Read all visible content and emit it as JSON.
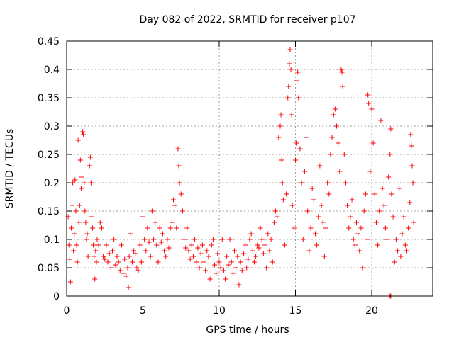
{
  "chart_data": {
    "type": "scatter",
    "title": "Day 082 of 2022, SRMTID for receiver p107",
    "xlabel": "GPS time / hours",
    "ylabel": "SRMTID / TECUs",
    "xlim": [
      0,
      24
    ],
    "ylim": [
      0,
      0.45
    ],
    "x_ticks": [
      0,
      5,
      10,
      15,
      20
    ],
    "x_tick_labels": [
      "0",
      "5",
      "10",
      "15",
      "20"
    ],
    "y_ticks": [
      0,
      0.05,
      0.1,
      0.15,
      0.2,
      0.25,
      0.3,
      0.35,
      0.4,
      0.45
    ],
    "y_tick_labels": [
      "0",
      "0.05",
      "0.1",
      "0.15",
      "0.2",
      "0.25",
      "0.3",
      "0.35",
      "0.4",
      "0.45"
    ],
    "grid": true,
    "marker": "plus",
    "color": "#ff0000",
    "series": [
      {
        "name": "SRMTID",
        "points": [
          [
            0.1,
            0.14
          ],
          [
            0.15,
            0.09
          ],
          [
            0.2,
            0.065
          ],
          [
            0.25,
            0.025
          ],
          [
            0.3,
            0.12
          ],
          [
            0.35,
            0.16
          ],
          [
            0.4,
            0.2
          ],
          [
            0.45,
            0.08
          ],
          [
            0.5,
            0.11
          ],
          [
            0.55,
            0.205
          ],
          [
            0.6,
            0.15
          ],
          [
            0.65,
            0.09
          ],
          [
            0.7,
            0.06
          ],
          [
            0.75,
            0.275
          ],
          [
            0.8,
            0.13
          ],
          [
            0.85,
            0.16
          ],
          [
            0.9,
            0.24
          ],
          [
            0.95,
            0.19
          ],
          [
            1.0,
            0.21
          ],
          [
            1.05,
            0.29
          ],
          [
            1.1,
            0.285
          ],
          [
            1.15,
            0.2
          ],
          [
            1.2,
            0.15
          ],
          [
            1.25,
            0.13
          ],
          [
            1.3,
            0.1
          ],
          [
            1.35,
            0.11
          ],
          [
            1.4,
            0.07
          ],
          [
            1.5,
            0.23
          ],
          [
            1.55,
            0.245
          ],
          [
            1.6,
            0.2
          ],
          [
            1.65,
            0.14
          ],
          [
            1.7,
            0.12
          ],
          [
            1.75,
            0.09
          ],
          [
            1.8,
            0.07
          ],
          [
            1.85,
            0.03
          ],
          [
            1.9,
            0.08
          ],
          [
            1.95,
            0.06
          ],
          [
            2.0,
            0.1
          ],
          [
            2.1,
            0.09
          ],
          [
            2.2,
            0.13
          ],
          [
            2.3,
            0.12
          ],
          [
            2.4,
            0.07
          ],
          [
            2.5,
            0.065
          ],
          [
            2.6,
            0.09
          ],
          [
            2.7,
            0.06
          ],
          [
            2.8,
            0.075
          ],
          [
            2.9,
            0.05
          ],
          [
            3.0,
            0.08
          ],
          [
            3.1,
            0.1
          ],
          [
            3.2,
            0.055
          ],
          [
            3.3,
            0.07
          ],
          [
            3.4,
            0.06
          ],
          [
            3.5,
            0.045
          ],
          [
            3.6,
            0.09
          ],
          [
            3.7,
            0.04
          ],
          [
            3.8,
            0.065
          ],
          [
            3.9,
            0.035
          ],
          [
            4.0,
            0.05
          ],
          [
            4.05,
            0.015
          ],
          [
            4.1,
            0.07
          ],
          [
            4.2,
            0.11
          ],
          [
            4.3,
            0.06
          ],
          [
            4.4,
            0.08
          ],
          [
            4.5,
            0.075
          ],
          [
            4.6,
            0.05
          ],
          [
            4.7,
            0.045
          ],
          [
            4.8,
            0.09
          ],
          [
            4.9,
            0.06
          ],
          [
            5.0,
            0.14
          ],
          [
            5.1,
            0.1
          ],
          [
            5.2,
            0.08
          ],
          [
            5.3,
            0.12
          ],
          [
            5.4,
            0.095
          ],
          [
            5.5,
            0.07
          ],
          [
            5.6,
            0.15
          ],
          [
            5.7,
            0.1
          ],
          [
            5.8,
            0.13
          ],
          [
            5.9,
            0.09
          ],
          [
            6.0,
            0.06
          ],
          [
            6.1,
            0.12
          ],
          [
            6.2,
            0.095
          ],
          [
            6.3,
            0.11
          ],
          [
            6.4,
            0.08
          ],
          [
            6.5,
            0.07
          ],
          [
            6.6,
            0.1
          ],
          [
            6.7,
            0.085
          ],
          [
            6.8,
            0.12
          ],
          [
            6.9,
            0.13
          ],
          [
            7.0,
            0.17
          ],
          [
            7.1,
            0.16
          ],
          [
            7.2,
            0.12
          ],
          [
            7.3,
            0.26
          ],
          [
            7.35,
            0.23
          ],
          [
            7.4,
            0.2
          ],
          [
            7.5,
            0.18
          ],
          [
            7.6,
            0.15
          ],
          [
            7.7,
            0.1
          ],
          [
            7.8,
            0.085
          ],
          [
            7.9,
            0.12
          ],
          [
            8.0,
            0.08
          ],
          [
            8.1,
            0.065
          ],
          [
            8.2,
            0.09
          ],
          [
            8.3,
            0.07
          ],
          [
            8.4,
            0.1
          ],
          [
            8.5,
            0.06
          ],
          [
            8.6,
            0.085
          ],
          [
            8.7,
            0.05
          ],
          [
            8.8,
            0.075
          ],
          [
            8.9,
            0.09
          ],
          [
            9.0,
            0.06
          ],
          [
            9.1,
            0.045
          ],
          [
            9.2,
            0.08
          ],
          [
            9.3,
            0.07
          ],
          [
            9.4,
            0.03
          ],
          [
            9.5,
            0.09
          ],
          [
            9.6,
            0.1
          ],
          [
            9.7,
            0.055
          ],
          [
            9.8,
            0.04
          ],
          [
            9.9,
            0.075
          ],
          [
            10.0,
            0.06
          ],
          [
            10.1,
            0.05
          ],
          [
            10.2,
            0.1
          ],
          [
            10.3,
            0.045
          ],
          [
            10.4,
            0.03
          ],
          [
            10.5,
            0.07
          ],
          [
            10.6,
            0.055
          ],
          [
            10.7,
            0.1
          ],
          [
            10.8,
            0.06
          ],
          [
            10.9,
            0.04
          ],
          [
            11.0,
            0.08
          ],
          [
            11.1,
            0.05
          ],
          [
            11.2,
            0.07
          ],
          [
            11.3,
            0.02
          ],
          [
            11.4,
            0.06
          ],
          [
            11.5,
            0.045
          ],
          [
            11.6,
            0.075
          ],
          [
            11.7,
            0.09
          ],
          [
            11.8,
            0.05
          ],
          [
            11.9,
            0.065
          ],
          [
            12.0,
            0.1
          ],
          [
            12.1,
            0.11
          ],
          [
            12.2,
            0.08
          ],
          [
            12.3,
            0.06
          ],
          [
            12.4,
            0.07
          ],
          [
            12.5,
            0.09
          ],
          [
            12.6,
            0.085
          ],
          [
            12.7,
            0.12
          ],
          [
            12.8,
            0.1
          ],
          [
            12.9,
            0.075
          ],
          [
            13.0,
            0.09
          ],
          [
            13.1,
            0.05
          ],
          [
            13.2,
            0.11
          ],
          [
            13.3,
            0.08
          ],
          [
            13.4,
            0.1
          ],
          [
            13.5,
            0.06
          ],
          [
            13.6,
            0.13
          ],
          [
            13.7,
            0.15
          ],
          [
            13.8,
            0.14
          ],
          [
            13.9,
            0.28
          ],
          [
            14.0,
            0.3
          ],
          [
            14.05,
            0.32
          ],
          [
            14.1,
            0.24
          ],
          [
            14.15,
            0.2
          ],
          [
            14.2,
            0.17
          ],
          [
            14.3,
            0.09
          ],
          [
            14.4,
            0.18
          ],
          [
            14.5,
            0.35
          ],
          [
            14.55,
            0.37
          ],
          [
            14.6,
            0.41
          ],
          [
            14.65,
            0.435
          ],
          [
            14.7,
            0.4
          ],
          [
            14.75,
            0.32
          ],
          [
            14.8,
            0.16
          ],
          [
            14.9,
            0.12
          ],
          [
            15.0,
            0.24
          ],
          [
            15.05,
            0.27
          ],
          [
            15.1,
            0.38
          ],
          [
            15.15,
            0.395
          ],
          [
            15.2,
            0.35
          ],
          [
            15.3,
            0.26
          ],
          [
            15.4,
            0.2
          ],
          [
            15.5,
            0.1
          ],
          [
            15.6,
            0.22
          ],
          [
            15.7,
            0.28
          ],
          [
            15.8,
            0.15
          ],
          [
            15.9,
            0.08
          ],
          [
            16.0,
            0.12
          ],
          [
            16.1,
            0.19
          ],
          [
            16.2,
            0.17
          ],
          [
            16.3,
            0.11
          ],
          [
            16.4,
            0.09
          ],
          [
            16.5,
            0.14
          ],
          [
            16.6,
            0.23
          ],
          [
            16.7,
            0.16
          ],
          [
            16.8,
            0.13
          ],
          [
            16.9,
            0.07
          ],
          [
            17.0,
            0.12
          ],
          [
            17.1,
            0.2
          ],
          [
            17.2,
            0.18
          ],
          [
            17.3,
            0.25
          ],
          [
            17.4,
            0.28
          ],
          [
            17.5,
            0.32
          ],
          [
            17.6,
            0.33
          ],
          [
            17.7,
            0.3
          ],
          [
            17.8,
            0.27
          ],
          [
            17.9,
            0.22
          ],
          [
            18.0,
            0.4
          ],
          [
            18.05,
            0.395
          ],
          [
            18.1,
            0.37
          ],
          [
            18.2,
            0.25
          ],
          [
            18.3,
            0.2
          ],
          [
            18.4,
            0.16
          ],
          [
            18.5,
            0.12
          ],
          [
            18.6,
            0.14
          ],
          [
            18.7,
            0.17
          ],
          [
            18.8,
            0.1
          ],
          [
            18.9,
            0.09
          ],
          [
            19.0,
            0.13
          ],
          [
            19.1,
            0.11
          ],
          [
            19.2,
            0.08
          ],
          [
            19.3,
            0.12
          ],
          [
            19.4,
            0.05
          ],
          [
            19.5,
            0.15
          ],
          [
            19.6,
            0.18
          ],
          [
            19.7,
            0.1
          ],
          [
            19.75,
            0.355
          ],
          [
            19.8,
            0.34
          ],
          [
            19.9,
            0.22
          ],
          [
            20.0,
            0.33
          ],
          [
            20.1,
            0.27
          ],
          [
            20.2,
            0.18
          ],
          [
            20.3,
            0.13
          ],
          [
            20.4,
            0.09
          ],
          [
            20.5,
            0.15
          ],
          [
            20.6,
            0.31
          ],
          [
            20.7,
            0.19
          ],
          [
            20.8,
            0.16
          ],
          [
            20.9,
            0.12
          ],
          [
            21.0,
            0.1
          ],
          [
            21.1,
            0.21
          ],
          [
            21.2,
            0.25
          ],
          [
            21.25,
            0.295
          ],
          [
            21.3,
            0.18
          ],
          [
            21.4,
            0.14
          ],
          [
            21.5,
            0.06
          ],
          [
            21.6,
            0.1
          ],
          [
            21.7,
            0.08
          ],
          [
            21.8,
            0.19
          ],
          [
            21.9,
            0.07
          ],
          [
            22.0,
            0.11
          ],
          [
            22.1,
            0.14
          ],
          [
            22.2,
            0.09
          ],
          [
            22.3,
            0.08
          ],
          [
            22.4,
            0.12
          ],
          [
            22.5,
            0.165
          ],
          [
            22.55,
            0.285
          ],
          [
            22.6,
            0.265
          ],
          [
            22.65,
            0.23
          ],
          [
            22.7,
            0.2
          ],
          [
            22.75,
            0.13
          ],
          [
            21.2,
            0.0
          ],
          [
            21.25,
            0.0
          ]
        ]
      }
    ]
  }
}
